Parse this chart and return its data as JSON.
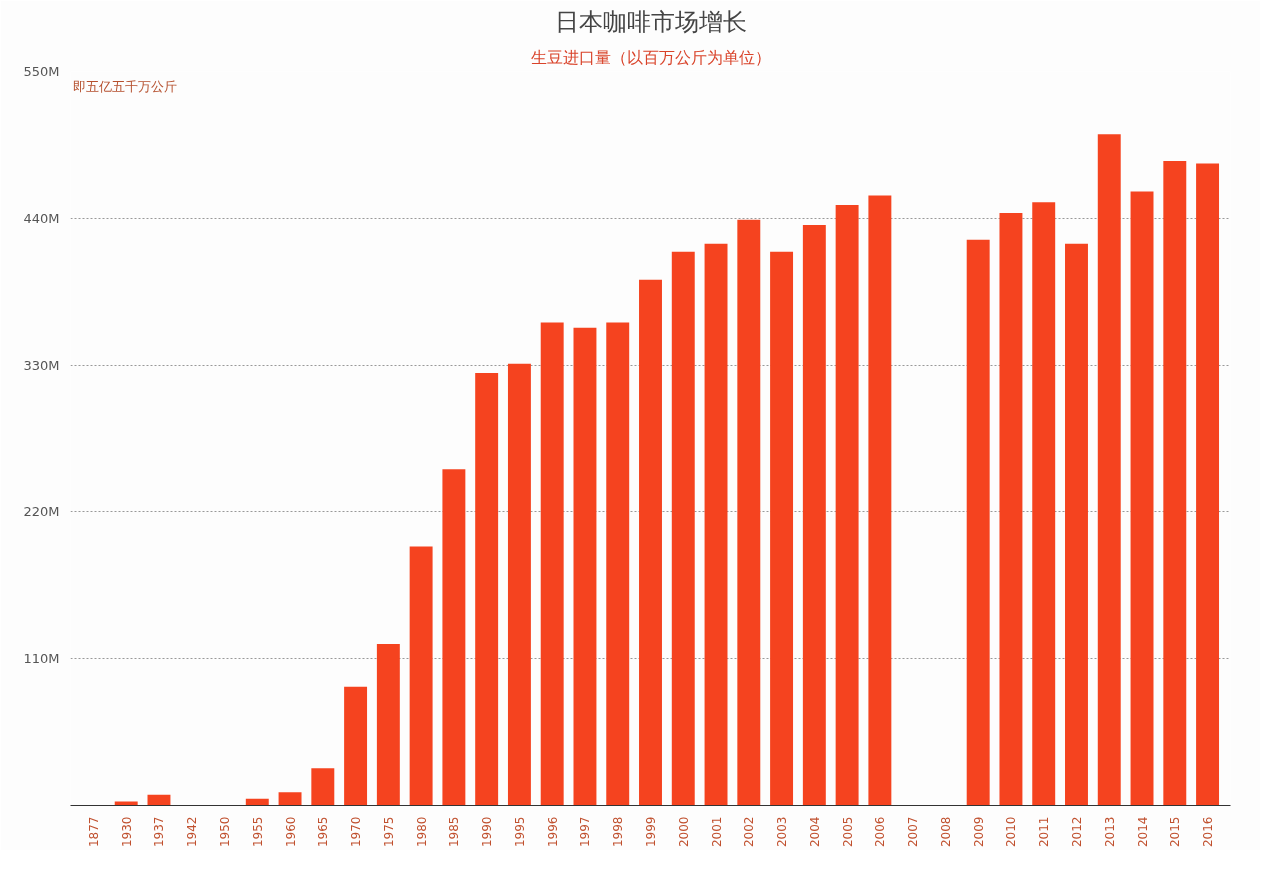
{
  "chart_data": {
    "type": "bar",
    "title": "日本咖啡市场增长",
    "subtitle": "生豆进口量（以百万公斤为单位）",
    "annotations": [
      "即五亿五千万公斤"
    ],
    "categories": [
      "1877",
      "1930",
      "1937",
      "1942",
      "1950",
      "1955",
      "1960",
      "1965",
      "1970",
      "1975",
      "1980",
      "1985",
      "1990",
      "1995",
      "1996",
      "1997",
      "1998",
      "1999",
      "2000",
      "2001",
      "2002",
      "2003",
      "2004",
      "2005",
      "2006",
      "2007",
      "2008",
      "2009",
      "2010",
      "2011",
      "2012",
      "2013",
      "2014",
      "2015",
      "2016"
    ],
    "values": [
      0,
      3,
      8,
      0,
      0,
      5,
      10,
      28,
      89,
      121,
      194,
      252,
      324,
      331,
      362,
      358,
      362,
      394,
      415,
      421,
      439,
      415,
      435,
      450,
      457,
      null,
      null,
      424,
      444,
      452,
      421,
      503,
      460,
      483,
      481
    ],
    "color": "#f5431f",
    "ylim": [
      0,
      550
    ],
    "yticks": [
      {
        "value": 110,
        "label": "110M"
      },
      {
        "value": 220,
        "label": "220M"
      },
      {
        "value": 330,
        "label": "330M"
      },
      {
        "value": 440,
        "label": "440M"
      },
      {
        "value": 550,
        "label": "550M"
      }
    ],
    "grid": "y"
  }
}
